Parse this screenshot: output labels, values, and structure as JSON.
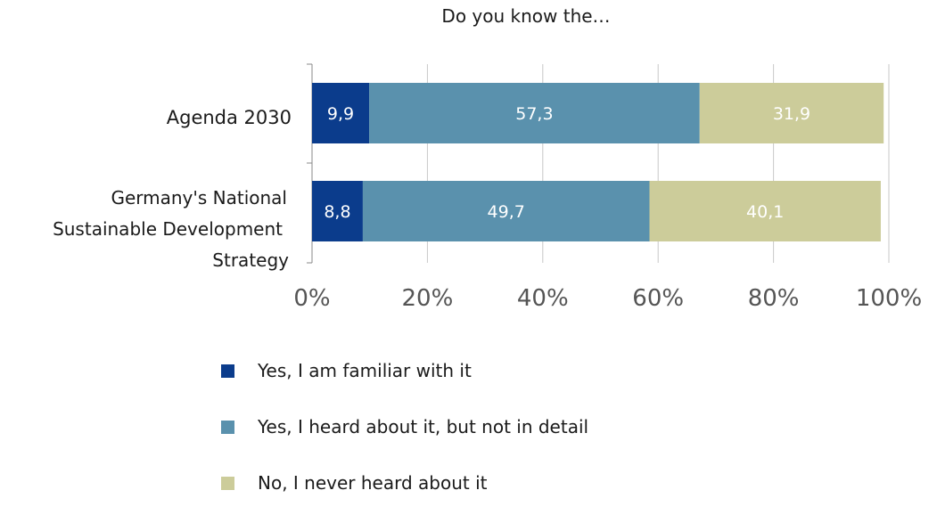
{
  "chart_data": {
    "type": "bar",
    "orientation": "horizontal",
    "stacked": true,
    "title": "Do you know the…",
    "categories": [
      "Agenda 2030",
      "Germany's National Sustainable Development Strategy"
    ],
    "category_lines": [
      [
        "Agenda 2030"
      ],
      [
        "Germany's National",
        "Sustainable Development",
        "Strategy"
      ]
    ],
    "series": [
      {
        "name": "Yes, I am familiar with it",
        "values": [
          9.9,
          8.8
        ],
        "labels": [
          "9,9",
          "8,8"
        ],
        "color": "#0b3c8c"
      },
      {
        "name": "Yes, I heard about it, but not in detail",
        "values": [
          57.3,
          49.7
        ],
        "labels": [
          "57,3",
          "49,7"
        ],
        "color": "#5a91ad"
      },
      {
        "name": "No, I never heard about it",
        "values": [
          31.9,
          40.1
        ],
        "labels": [
          "31,9",
          "40,1"
        ],
        "color": "#cccc9a"
      }
    ],
    "xlim": [
      0,
      100
    ],
    "xticks": [
      0,
      20,
      40,
      60,
      80,
      100
    ],
    "xtick_labels": [
      "0%",
      "20%",
      "40%",
      "60%",
      "80%",
      "100%"
    ],
    "xlabel": "",
    "ylabel": "",
    "grid": true,
    "legend_position": "bottom"
  }
}
